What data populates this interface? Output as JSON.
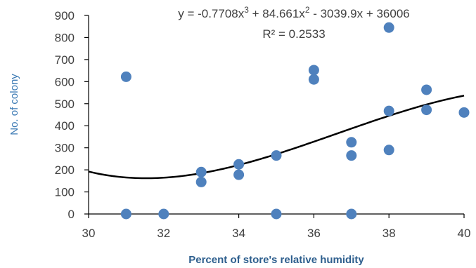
{
  "chart_data": {
    "type": "scatter",
    "xlabel": "Percent of store's relative humidity",
    "ylabel": "No. of colony",
    "xlim": [
      30,
      40
    ],
    "ylim": [
      0,
      900
    ],
    "x_ticks": [
      30,
      32,
      34,
      36,
      38,
      40
    ],
    "y_ticks": [
      0,
      100,
      200,
      300,
      400,
      500,
      600,
      700,
      800,
      900
    ],
    "point_color": "#4f81bd",
    "trend_color": "#000000",
    "points": [
      {
        "x": 31,
        "y": 622
      },
      {
        "x": 31,
        "y": 0
      },
      {
        "x": 32,
        "y": 0
      },
      {
        "x": 33,
        "y": 190
      },
      {
        "x": 33,
        "y": 145
      },
      {
        "x": 34,
        "y": 225
      },
      {
        "x": 34,
        "y": 178
      },
      {
        "x": 35,
        "y": 265
      },
      {
        "x": 35,
        "y": 0
      },
      {
        "x": 36,
        "y": 652
      },
      {
        "x": 36,
        "y": 610
      },
      {
        "x": 37,
        "y": 325
      },
      {
        "x": 37,
        "y": 265
      },
      {
        "x": 37,
        "y": 0
      },
      {
        "x": 38,
        "y": 845
      },
      {
        "x": 38,
        "y": 467
      },
      {
        "x": 38,
        "y": 290
      },
      {
        "x": 39,
        "y": 563
      },
      {
        "x": 39,
        "y": 472
      },
      {
        "x": 40,
        "y": 460
      }
    ],
    "trendline": {
      "type": "polynomial",
      "coefficients": [
        -0.7708,
        84.661,
        -3039.9,
        36006
      ],
      "equation_parts": [
        "y = -0.7708x",
        "3",
        " + 84.661x",
        "2",
        " - 3039.9x + 36006"
      ],
      "r_squared_label": "R² = 0.2533"
    }
  }
}
